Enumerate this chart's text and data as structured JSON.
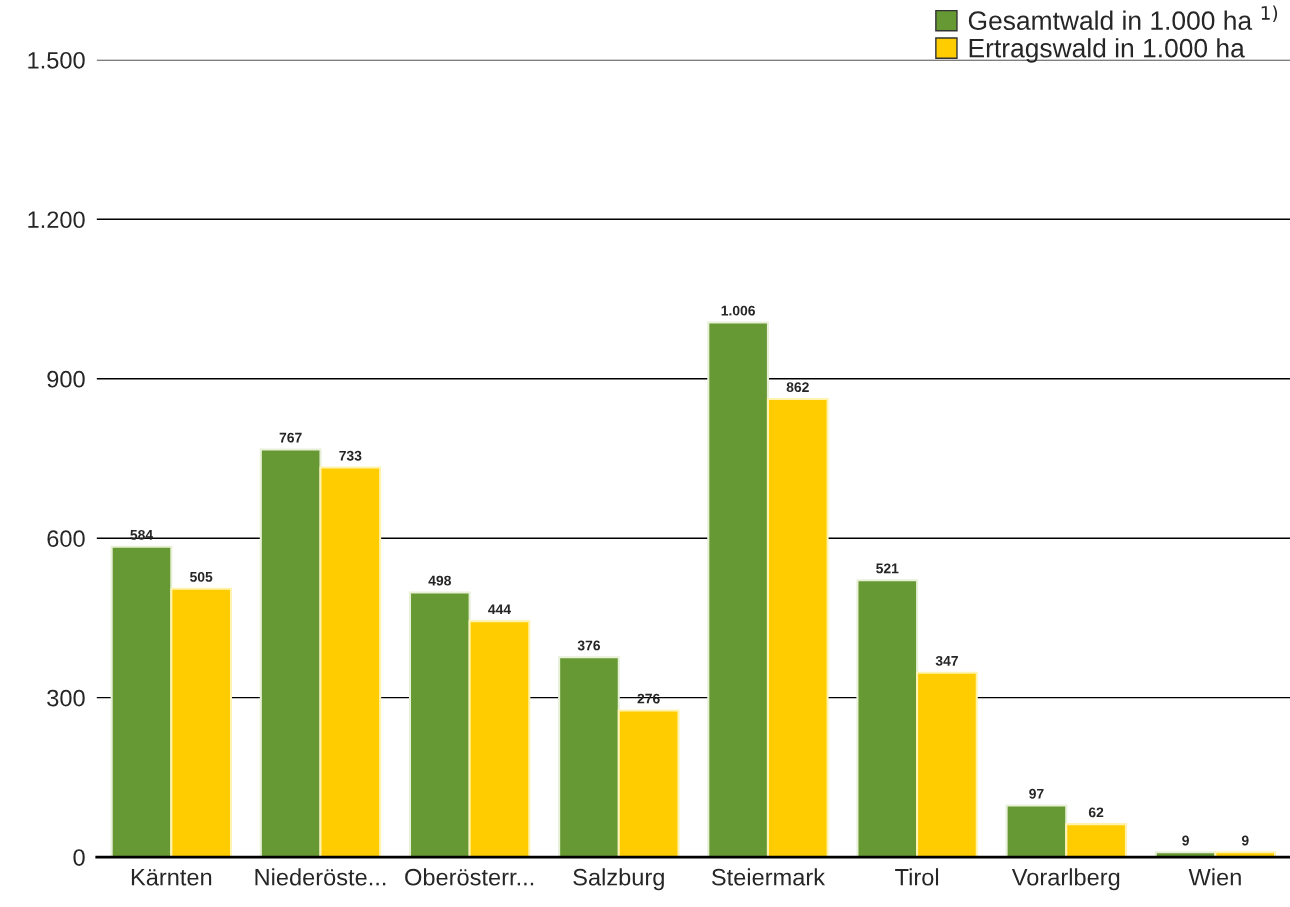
{
  "chart_data": {
    "type": "bar",
    "categories": [
      "Kärnten",
      "Niederöste...",
      "Oberösterr...",
      "Salzburg",
      "Steiermark",
      "Tirol",
      "Vorarlberg",
      "Wien"
    ],
    "series": [
      {
        "name": "Gesamtwald in 1.000 ha $^{1)}$",
        "color": "#669933",
        "values": [
          584,
          767,
          498,
          376,
          1006,
          521,
          97,
          9
        ],
        "value_labels": [
          "584",
          "767",
          "498",
          "376",
          "1.006",
          "521",
          "97",
          "9"
        ]
      },
      {
        "name": "Ertragswald in 1.000 ha",
        "color": "#ffcc00",
        "values": [
          505,
          733,
          444,
          276,
          862,
          347,
          62,
          9
        ],
        "value_labels": [
          "505",
          "733",
          "444",
          "276",
          "862",
          "347",
          "62",
          "9"
        ]
      }
    ],
    "ylim": [
      0,
      1500
    ],
    "yticks": [
      0,
      300,
      600,
      900,
      {
        "value": 1200,
        "label": "1.200"
      },
      {
        "value": 1500,
        "label": "1.500"
      }
    ],
    "grid": "y",
    "legend": "top right"
  }
}
